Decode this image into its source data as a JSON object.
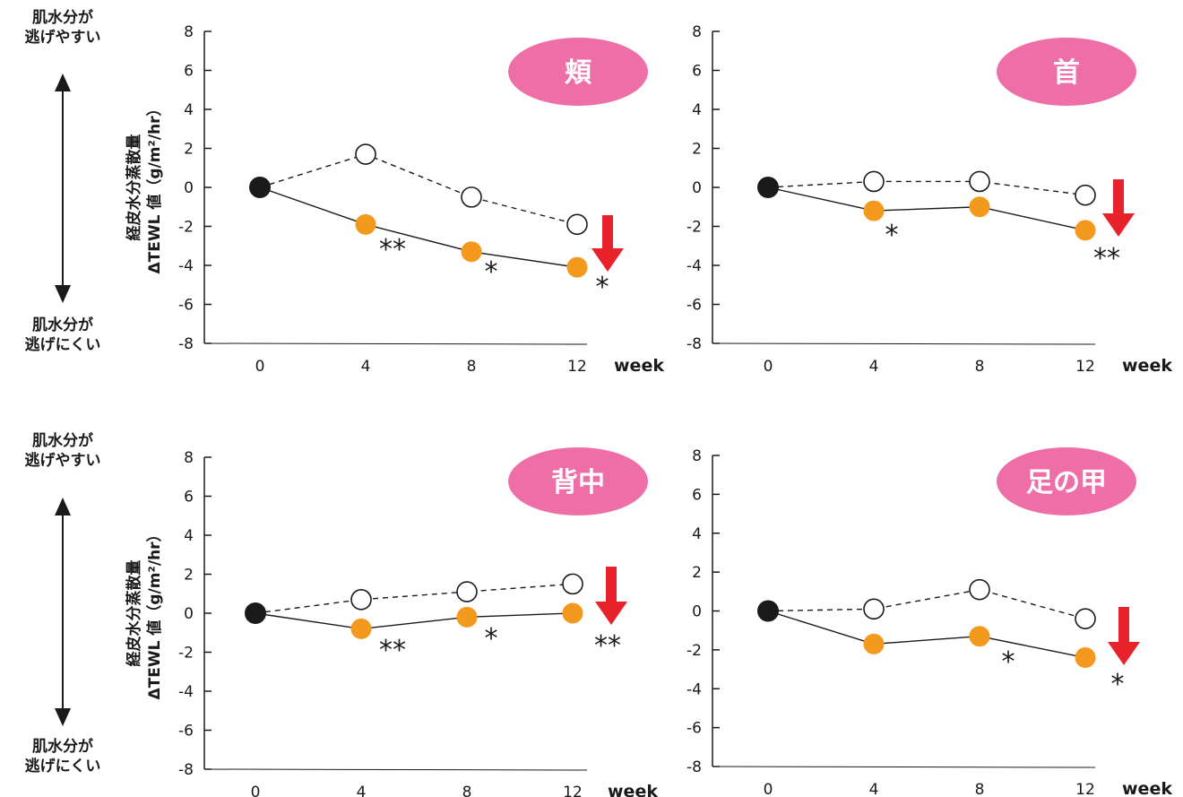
{
  "side_labels": {
    "upper": [
      "肌水分が",
      "逃げやすい"
    ],
    "lower": [
      "肌水分が",
      "逃げにくい"
    ]
  },
  "colors": {
    "treatment": "#f39a1e",
    "control": "#ffffff",
    "baseline": "#1a1a1a",
    "badge": "#ee6fa8",
    "arrow": "#e8222a",
    "axis": "#1a1a1a"
  },
  "chart_data": [
    {
      "type": "line",
      "badge": "頬",
      "ylabel_line1": "経皮水分蒸散量",
      "ylabel_line2": "ΔTEWL 値（g/m²/hr）",
      "ylim": [
        -8,
        8
      ],
      "yticks": [
        "8",
        "6",
        "4",
        "2",
        "0",
        "-2",
        "-4",
        "-6",
        "-8"
      ],
      "x": [
        0,
        4,
        8,
        12
      ],
      "xticks": [
        "0",
        "4",
        "8",
        "12"
      ],
      "x_unit": "week",
      "grid": false,
      "series": [
        {
          "role": "control",
          "style": "dashed-open-circle",
          "values": [
            0,
            1.7,
            -0.5,
            -1.9
          ]
        },
        {
          "role": "treatment",
          "style": "solid-filled-circle",
          "values": [
            0,
            -1.9,
            -3.3,
            -4.1
          ]
        }
      ],
      "significance": [
        {
          "x": 4,
          "text": "**"
        },
        {
          "x": 8,
          "text": "*"
        },
        {
          "x": 12,
          "text": "*"
        }
      ]
    },
    {
      "type": "line",
      "badge": "首",
      "ylim": [
        -8,
        8
      ],
      "yticks": [
        "8",
        "6",
        "4",
        "2",
        "0",
        "-2",
        "-4",
        "-6",
        "-8"
      ],
      "x": [
        0,
        4,
        8,
        12
      ],
      "xticks": [
        "0",
        "4",
        "8",
        "12"
      ],
      "x_unit": "week",
      "grid": false,
      "series": [
        {
          "role": "control",
          "style": "dashed-open-circle",
          "values": [
            0,
            0.3,
            0.3,
            -0.4
          ]
        },
        {
          "role": "treatment",
          "style": "solid-filled-circle",
          "values": [
            0,
            -1.2,
            -1.0,
            -2.2
          ]
        }
      ],
      "significance": [
        {
          "x": 4,
          "text": "*"
        },
        {
          "x": 12,
          "text": "**"
        }
      ]
    },
    {
      "type": "line",
      "badge": "背中",
      "ylabel_line1": "経皮水分蒸散量",
      "ylabel_line2": "ΔTEWL 値（g/m²/hr）",
      "ylim": [
        -8,
        8
      ],
      "yticks": [
        "8",
        "6",
        "4",
        "2",
        "0",
        "-2",
        "-4",
        "-6",
        "-8"
      ],
      "x": [
        0,
        4,
        8,
        12
      ],
      "xticks": [
        "0",
        "4",
        "8",
        "12"
      ],
      "x_unit": "week",
      "grid": false,
      "series": [
        {
          "role": "control",
          "style": "dashed-open-circle",
          "values": [
            0,
            0.7,
            1.1,
            1.5
          ]
        },
        {
          "role": "treatment",
          "style": "solid-filled-circle",
          "values": [
            0,
            -0.8,
            -0.2,
            0.0
          ]
        }
      ],
      "significance": [
        {
          "x": 4,
          "text": "**"
        },
        {
          "x": 8,
          "text": "*"
        },
        {
          "x": 12,
          "text": "**"
        }
      ]
    },
    {
      "type": "line",
      "badge": "足の甲",
      "ylim": [
        -8,
        8
      ],
      "yticks": [
        "8",
        "6",
        "4",
        "2",
        "0",
        "-2",
        "-4",
        "-6",
        "-8"
      ],
      "x": [
        0,
        4,
        8,
        12
      ],
      "xticks": [
        "0",
        "4",
        "8",
        "12"
      ],
      "x_unit": "week",
      "grid": false,
      "series": [
        {
          "role": "control",
          "style": "dashed-open-circle",
          "values": [
            0,
            0.1,
            1.1,
            -0.4
          ]
        },
        {
          "role": "treatment",
          "style": "solid-filled-circle",
          "values": [
            0,
            -1.7,
            -1.3,
            -2.4
          ]
        }
      ],
      "significance": [
        {
          "x": 8,
          "text": "*"
        },
        {
          "x": 12,
          "text": "*"
        }
      ]
    }
  ]
}
